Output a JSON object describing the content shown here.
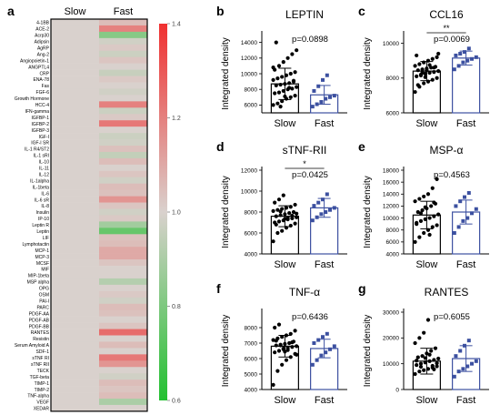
{
  "panel_letters": {
    "a": "a",
    "b": "b",
    "c": "c",
    "d": "d",
    "e": "e",
    "f": "f",
    "g": "g"
  },
  "heatmap": {
    "type": "heatmap",
    "columns": [
      "Slow",
      "Fast"
    ],
    "rows": [
      "4-1BB",
      "ACE-2",
      "Acrp30",
      "Adipsin",
      "AgRP",
      "Ang-2",
      "Angiopoietin-1",
      "ANGPTL4",
      "CRP",
      "ENA-78",
      "Fas",
      "FGF-6",
      "Growth Hormone",
      "HCC-4",
      "IFN-gamma",
      "IGFBP-1",
      "IGFBP-2",
      "IGFBP-3",
      "IGF-I",
      "IGF-I SR",
      "IL-1 R4/ST2",
      "IL-1 sRI",
      "IL-10",
      "IL-11",
      "IL-12",
      "IL-1alpha",
      "IL-1beta",
      "IL-6",
      "IL-6 sR",
      "IL-8",
      "Insulin",
      "IP-10",
      "Leptin R",
      "Leptin",
      "LIF",
      "Lymphotactin",
      "MCP-1",
      "MCP-3",
      "MCSF",
      "MIF",
      "MIP-1beta",
      "MSP alpha",
      "OPG",
      "OSM",
      "PAI-I",
      "PARC",
      "PDGF-AA",
      "PDGF-AB",
      "PDGF-BB",
      "RANTES",
      "Resistin",
      "Serum Amyloid A",
      "SDF-1",
      "sTNF RI",
      "sTNF RII",
      "TECK",
      "TGF-beta",
      "TIMP-1",
      "TIMP-2",
      "TNF-alpha",
      "VEGF",
      "XEDAR"
    ],
    "values_slow": [
      1,
      1,
      1,
      1,
      1,
      1,
      1,
      1,
      1,
      1,
      1,
      1,
      1,
      1,
      1,
      1,
      1,
      1,
      1,
      1,
      1,
      1,
      1,
      1,
      1,
      1,
      1,
      1,
      1,
      1,
      1,
      1,
      1,
      1,
      1,
      1,
      1,
      1,
      1,
      1,
      1,
      1,
      1,
      1,
      1,
      1,
      1,
      1,
      1,
      1,
      1,
      1,
      1,
      1,
      1,
      1,
      1,
      1,
      1,
      1,
      1,
      1
    ],
    "values_fast": [
      1.05,
      1.2,
      0.82,
      0.98,
      1.02,
      0.97,
      1.03,
      1.0,
      0.96,
      1.02,
      1.0,
      0.98,
      1.0,
      1.2,
      0.97,
      1.02,
      1.22,
      1.0,
      0.97,
      0.98,
      1.04,
      0.95,
      1.05,
      1.0,
      1.03,
      0.98,
      1.05,
      1.04,
      1.15,
      1.03,
      0.98,
      1.02,
      0.88,
      0.75,
      1.04,
      1.05,
      1.1,
      1.1,
      1.03,
      1.0,
      1.0,
      0.92,
      1.0,
      1.02,
      0.98,
      1.05,
      1.04,
      1.0,
      1.03,
      1.25,
      1.0,
      1.05,
      1.0,
      1.22,
      1.15,
      1.0,
      0.98,
      1.05,
      1.03,
      1.05,
      0.9,
      1.0
    ],
    "colorbar": {
      "min": 0.6,
      "max": 1.4,
      "ticks": [
        "1.4",
        "1.2",
        "1.0",
        "0.8",
        "0.6"
      ],
      "high_color": "#f03030",
      "mid_color": "#d9d1cd",
      "low_color": "#22c030"
    }
  },
  "chart_data": [
    {
      "panel": "b",
      "type": "scatter",
      "title": "LEPTIN",
      "ylabel": "Integrated density",
      "categories": [
        "Slow",
        "Fast"
      ],
      "ylim": [
        5000,
        15000
      ],
      "yticks": [
        6000,
        8000,
        10000,
        12000,
        14000
      ],
      "means": [
        8700,
        7300
      ],
      "sds": [
        2000,
        1200
      ],
      "stat_text": "p=0.0898",
      "sig_stars": "",
      "series": [
        {
          "name": "Slow",
          "color": "#000000",
          "values": [
            6000,
            6200,
            6500,
            6800,
            7000,
            7200,
            7500,
            7600,
            7800,
            8000,
            8100,
            8300,
            8500,
            8600,
            8700,
            8800,
            9000,
            9200,
            9400,
            9600,
            9800,
            10000,
            10200,
            10500,
            11000,
            11500,
            12000,
            12500,
            13000,
            14000,
            5800,
            7100,
            8200,
            9100,
            10800
          ]
        },
        {
          "name": "Fast",
          "color": "#3c50a0",
          "values": [
            5800,
            6100,
            6400,
            6800,
            7000,
            7200,
            7800,
            8400,
            9200,
            9800
          ]
        }
      ]
    },
    {
      "panel": "c",
      "type": "scatter",
      "title": "CCL16",
      "ylabel": "Integrated density",
      "categories": [
        "Slow",
        "Fast"
      ],
      "ylim": [
        6000,
        10500
      ],
      "yticks": [
        6000,
        8000,
        10000
      ],
      "means": [
        8400,
        9150
      ],
      "sds": [
        550,
        400
      ],
      "stat_text": "p=0.0069",
      "sig_stars": "**",
      "series": [
        {
          "name": "Slow",
          "color": "#000000",
          "values": [
            7200,
            7500,
            7700,
            7800,
            7900,
            8000,
            8100,
            8200,
            8250,
            8300,
            8350,
            8400,
            8450,
            8500,
            8550,
            8600,
            8650,
            8700,
            8800,
            8900,
            9000,
            9100,
            9200,
            9300,
            8150,
            8050,
            8750,
            8600,
            9400,
            7600,
            8300,
            8450
          ]
        },
        {
          "name": "Fast",
          "color": "#3c50a0",
          "values": [
            8500,
            8700,
            8900,
            9000,
            9100,
            9200,
            9300,
            9400,
            9500,
            9700
          ]
        }
      ]
    },
    {
      "panel": "d",
      "type": "scatter",
      "title": "sTNF-RII",
      "ylabel": "Integrated density",
      "categories": [
        "Slow",
        "Fast"
      ],
      "ylim": [
        4000,
        12000
      ],
      "yticks": [
        4000,
        6000,
        8000,
        10000,
        12000
      ],
      "means": [
        7600,
        8400
      ],
      "sds": [
        1000,
        900
      ],
      "stat_text": "p=0.0425",
      "sig_stars": "*",
      "series": [
        {
          "name": "Slow",
          "color": "#000000",
          "values": [
            5200,
            6000,
            6200,
            6500,
            6700,
            6900,
            7000,
            7100,
            7200,
            7300,
            7400,
            7500,
            7600,
            7700,
            7800,
            7900,
            8000,
            8100,
            8200,
            8300,
            8400,
            8500,
            8700,
            8900,
            9200,
            9600,
            7450,
            7650,
            7850,
            6800,
            8050,
            7350
          ]
        },
        {
          "name": "Fast",
          "color": "#3c50a0",
          "values": [
            7200,
            7500,
            7800,
            8000,
            8200,
            8400,
            8600,
            8900,
            9200,
            9700
          ]
        }
      ]
    },
    {
      "panel": "e",
      "type": "scatter",
      "title": "MSP-α",
      "ylabel": "Integrated density",
      "categories": [
        "Slow",
        "Fast"
      ],
      "ylim": [
        4000,
        18000
      ],
      "yticks": [
        4000,
        6000,
        8000,
        10000,
        12000,
        14000,
        16000,
        18000
      ],
      "means": [
        10500,
        11000
      ],
      "sds": [
        2300,
        2000
      ],
      "stat_text": "p=0.4563",
      "sig_stars": "",
      "series": [
        {
          "name": "Slow",
          "color": "#000000",
          "values": [
            6000,
            6800,
            7500,
            8000,
            8500,
            8800,
            9200,
            9500,
            9800,
            10000,
            10300,
            10600,
            11000,
            11300,
            11600,
            12000,
            12400,
            12800,
            13200,
            13600,
            14000,
            15000,
            16500,
            9000,
            10800,
            11800,
            7200,
            12600
          ]
        },
        {
          "name": "Fast",
          "color": "#3c50a0",
          "values": [
            7500,
            8500,
            9500,
            10000,
            10800,
            11500,
            12000,
            12800,
            13500,
            14200
          ]
        }
      ]
    },
    {
      "panel": "f",
      "type": "scatter",
      "title": "TNF-α",
      "ylabel": "Integrated density",
      "categories": [
        "Slow",
        "Fast"
      ],
      "ylim": [
        4000,
        9000
      ],
      "yticks": [
        4000,
        5000,
        6000,
        7000,
        8000
      ],
      "means": [
        6800,
        6650
      ],
      "sds": [
        700,
        600
      ],
      "stat_text": "p=0.6436",
      "sig_stars": "",
      "series": [
        {
          "name": "Slow",
          "color": "#000000",
          "values": [
            4300,
            5200,
            5600,
            5900,
            6100,
            6300,
            6400,
            6500,
            6600,
            6700,
            6750,
            6800,
            6850,
            6900,
            6950,
            7000,
            7100,
            7200,
            7300,
            7400,
            7500,
            7600,
            7800,
            8000,
            8200,
            6650,
            6550,
            7050,
            6250,
            7150,
            6850,
            6450
          ]
        },
        {
          "name": "Fast",
          "color": "#3c50a0",
          "values": [
            5600,
            5900,
            6200,
            6400,
            6600,
            6800,
            7000,
            7200,
            7400,
            7600
          ]
        }
      ]
    },
    {
      "panel": "g",
      "type": "scatter",
      "title": "RANTES",
      "ylabel": "Integrated density",
      "categories": [
        "Slow",
        "Fast"
      ],
      "ylim": [
        0,
        30000
      ],
      "yticks": [
        0,
        10000,
        20000,
        30000
      ],
      "means": [
        11000,
        12000
      ],
      "sds": [
        5000,
        5000
      ],
      "stat_text": "p=0.6055",
      "sig_stars": "",
      "series": [
        {
          "name": "Slow",
          "color": "#000000",
          "values": [
            6000,
            7000,
            7500,
            8000,
            8500,
            9000,
            9500,
            10000,
            10500,
            11000,
            11500,
            12000,
            12500,
            13000,
            14000,
            15000,
            16000,
            18000,
            20000,
            22000,
            27000,
            9200,
            10200,
            11200,
            8800,
            12200,
            13500,
            7800
          ]
        },
        {
          "name": "Fast",
          "color": "#3c50a0",
          "values": [
            5000,
            7000,
            8000,
            9000,
            10000,
            11000,
            13000,
            15000,
            17000,
            19000
          ]
        }
      ]
    }
  ]
}
